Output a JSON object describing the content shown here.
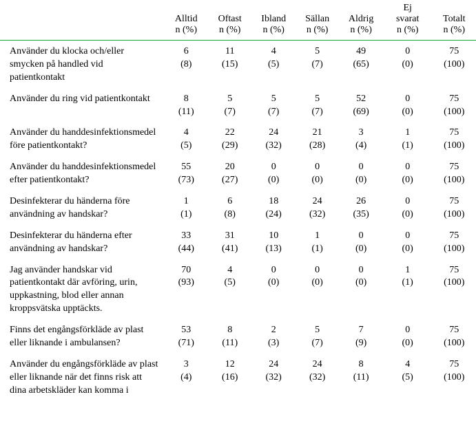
{
  "columns": [
    {
      "l1": "Alltid",
      "l2": "n (%)"
    },
    {
      "l1": "Oftast",
      "l2": "n (%)"
    },
    {
      "l1": "Ibland",
      "l2": "n (%)"
    },
    {
      "l1": "Sällan",
      "l2": "n (%)"
    },
    {
      "l1": "Aldrig",
      "l2": "n (%)"
    },
    {
      "l1": "Ej svarat",
      "l2": "n (%)"
    },
    {
      "l1": "Totalt",
      "l2": "n (%)"
    }
  ],
  "rows": [
    {
      "q": "Använder du klocka och/eller smycken på handled vid patientkontakt",
      "c": [
        {
          "n": "6",
          "p": "(8)"
        },
        {
          "n": "11",
          "p": "(15)"
        },
        {
          "n": "4",
          "p": "(5)"
        },
        {
          "n": "5",
          "p": "(7)"
        },
        {
          "n": "49",
          "p": "(65)"
        },
        {
          "n": "0",
          "p": "(0)"
        },
        {
          "n": "75",
          "p": "(100)"
        }
      ]
    },
    {
      "q": "Använder du ring vid patientkontakt",
      "c": [
        {
          "n": "8",
          "p": "(11)"
        },
        {
          "n": "5",
          "p": "(7)"
        },
        {
          "n": "5",
          "p": "(7)"
        },
        {
          "n": "5",
          "p": "(7)"
        },
        {
          "n": "52",
          "p": "(69)"
        },
        {
          "n": "0",
          "p": "(0)"
        },
        {
          "n": "75",
          "p": "(100)"
        }
      ]
    },
    {
      "q": "Använder du handdesinfektionsmedel före patientkontakt?",
      "c": [
        {
          "n": "4",
          "p": "(5)"
        },
        {
          "n": "22",
          "p": "(29)"
        },
        {
          "n": "24",
          "p": "(32)"
        },
        {
          "n": "21",
          "p": "(28)"
        },
        {
          "n": "3",
          "p": "(4)"
        },
        {
          "n": "1",
          "p": "(1)"
        },
        {
          "n": "75",
          "p": "(100)"
        }
      ]
    },
    {
      "q": "Använder du handdesinfektionsmedel efter patientkontakt?",
      "c": [
        {
          "n": "55",
          "p": "(73)"
        },
        {
          "n": "20",
          "p": "(27)"
        },
        {
          "n": "0",
          "p": "(0)"
        },
        {
          "n": "0",
          "p": "(0)"
        },
        {
          "n": "0",
          "p": "(0)"
        },
        {
          "n": "0",
          "p": "(0)"
        },
        {
          "n": "75",
          "p": "(100)"
        }
      ]
    },
    {
      "q": "Desinfekterar du händerna före användning av handskar?",
      "c": [
        {
          "n": "1",
          "p": "(1)"
        },
        {
          "n": "6",
          "p": "(8)"
        },
        {
          "n": "18",
          "p": "(24)"
        },
        {
          "n": "24",
          "p": "(32)"
        },
        {
          "n": "26",
          "p": "(35)"
        },
        {
          "n": "0",
          "p": "(0)"
        },
        {
          "n": "75",
          "p": "(100)"
        }
      ]
    },
    {
      "q": "Desinfekterar du händerna efter användning av handskar?",
      "c": [
        {
          "n": "33",
          "p": "(44)"
        },
        {
          "n": "31",
          "p": "(41)"
        },
        {
          "n": "10",
          "p": "(13)"
        },
        {
          "n": "1",
          "p": "(1)"
        },
        {
          "n": "0",
          "p": "(0)"
        },
        {
          "n": "0",
          "p": "(0)"
        },
        {
          "n": "75",
          "p": "(100)"
        }
      ]
    },
    {
      "q": "Jag använder handskar vid patientkontakt där avföring, urin, uppkastning, blod eller annan kroppsvätska upptäckts.",
      "c": [
        {
          "n": "70",
          "p": "(93)"
        },
        {
          "n": "4",
          "p": "(5)"
        },
        {
          "n": "0",
          "p": "(0)"
        },
        {
          "n": "0",
          "p": "(0)"
        },
        {
          "n": "0",
          "p": "(0)"
        },
        {
          "n": "1",
          "p": "(1)"
        },
        {
          "n": "75",
          "p": "(100)"
        }
      ]
    },
    {
      "q": "Finns det engångsförkläde av plast eller liknande i ambulansen?",
      "c": [
        {
          "n": "53",
          "p": "(71)"
        },
        {
          "n": "8",
          "p": "(11)"
        },
        {
          "n": "2",
          "p": "(3)"
        },
        {
          "n": "5",
          "p": "(7)"
        },
        {
          "n": "7",
          "p": "(9)"
        },
        {
          "n": "0",
          "p": "(0)"
        },
        {
          "n": "75",
          "p": "(100)"
        }
      ]
    },
    {
      "q": "Använder du engångsförkläde av plast eller liknande när det finns risk att dina arbetskläder kan komma i",
      "c": [
        {
          "n": "3",
          "p": "(4)"
        },
        {
          "n": "12",
          "p": "(16)"
        },
        {
          "n": "24",
          "p": "(32)"
        },
        {
          "n": "24",
          "p": "(32)"
        },
        {
          "n": "8",
          "p": "(11)"
        },
        {
          "n": "4",
          "p": "(5)"
        },
        {
          "n": "75",
          "p": "(100)"
        }
      ]
    }
  ],
  "colors": {
    "rule": "#13a538"
  }
}
